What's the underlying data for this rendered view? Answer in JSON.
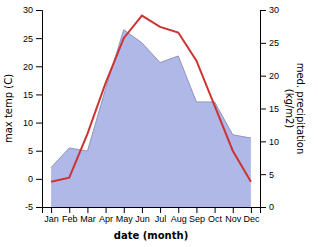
{
  "chart_data": {
    "type": "line",
    "xlabel": "date (month)",
    "ylabel": "max temp (C)",
    "y2label": "med. precipitation\n(kg/m2)",
    "categories": [
      "Jan",
      "Feb",
      "Mar",
      "Apr",
      "May",
      "Jun",
      "Jul",
      "Aug",
      "Sep",
      "Oct",
      "Nov",
      "Dec"
    ],
    "series": [
      {
        "type": "area",
        "axis": "y2",
        "color": "#b0b8e8",
        "values": [
          6.0,
          9.0,
          8.5,
          18.0,
          27.0,
          25.0,
          22.0,
          23.0,
          16.0,
          16.0,
          11.0,
          10.5
        ]
      },
      {
        "type": "line",
        "color": "#cc3333",
        "values": [
          -0.5,
          0.2,
          8.0,
          17.0,
          25.0,
          29.0,
          27.0,
          26.0,
          21.0,
          13.0,
          5.0,
          -0.5
        ]
      }
    ],
    "ylim": [
      -5,
      30
    ],
    "yticks": [
      -5,
      0,
      5,
      10,
      15,
      20,
      25,
      30
    ],
    "y2lim": [
      0,
      30
    ],
    "y2ticks": [
      0,
      5,
      10,
      15,
      20,
      25,
      30
    ],
    "grid": false
  }
}
